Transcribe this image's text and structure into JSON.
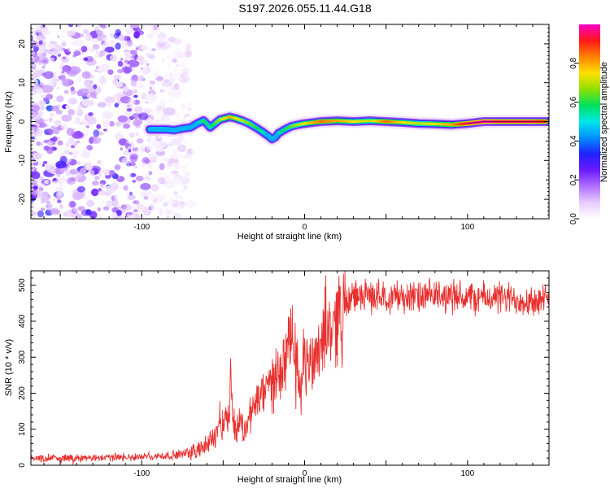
{
  "title": "S197.2026.055.11.44.G18",
  "colors": {
    "snr_line": "#e8302e",
    "ridge_core": "#ff2020",
    "background": "#ffffff",
    "colormap": [
      "#ffffff",
      "#e6ccff",
      "#b070ff",
      "#6a1bff",
      "#2020ff",
      "#0090ff",
      "#00e8e8",
      "#00e060",
      "#8ee000",
      "#ffe000",
      "#ff8000",
      "#ff1818",
      "#ff00c8"
    ]
  },
  "chart_data": [
    {
      "id": "spectrogram",
      "type": "heatmap",
      "xlabel": "Height of straight line (km)",
      "ylabel": "Frequency (Hz)",
      "xlim": [
        -168,
        150
      ],
      "ylim": [
        -25,
        25
      ],
      "xticks": [
        -100,
        0,
        100
      ],
      "yticks": [
        -20,
        -10,
        0,
        10,
        20
      ],
      "noise_region_x": [
        -168,
        -70
      ],
      "ridge": {
        "x": [
          -95,
          -90,
          -85,
          -80,
          -75,
          -70,
          -66,
          -62,
          -58,
          -52,
          -46,
          -42,
          -38,
          -34,
          -30,
          -26,
          -22,
          -20,
          -18,
          -16,
          -12,
          -8,
          -4,
          0,
          10,
          20,
          30,
          40,
          50,
          60,
          70,
          80,
          90,
          100,
          110,
          120,
          130,
          140,
          148
        ],
        "freq": [
          -2,
          -2,
          -2,
          -2.2,
          -1.8,
          -1.5,
          -0.5,
          0.3,
          -1.5,
          0.5,
          1.2,
          0.8,
          0.2,
          -0.5,
          -1.5,
          -2.6,
          -3.8,
          -4.5,
          -4,
          -3,
          -2,
          -1.2,
          -0.8,
          -0.5,
          0,
          0.2,
          0,
          0.2,
          0,
          -0.2,
          -0.5,
          -0.6,
          -0.8,
          -0.5,
          0,
          0,
          0,
          0,
          0
        ],
        "amplitude": [
          0.3,
          0.3,
          0.35,
          0.35,
          0.4,
          0.45,
          0.5,
          0.6,
          0.55,
          0.7,
          0.8,
          0.75,
          0.7,
          0.65,
          0.6,
          0.55,
          0.5,
          0.5,
          0.5,
          0.55,
          0.6,
          0.65,
          0.7,
          0.75,
          0.85,
          0.8,
          0.75,
          0.7,
          0.85,
          0.75,
          0.7,
          0.75,
          0.8,
          0.95,
          1,
          0.95,
          0.95,
          0.95,
          0.9
        ]
      }
    },
    {
      "id": "snr",
      "type": "line",
      "xlabel": "Height of straight line (km)",
      "ylabel": "SNR (10 * v/v)",
      "xlim": [
        -168,
        150
      ],
      "ylim": [
        0,
        540
      ],
      "xticks": [
        -100,
        0,
        100
      ],
      "yticks": [
        0,
        100,
        200,
        300,
        400,
        500
      ],
      "series": [
        {
          "name": "SNR",
          "x": [
            -168,
            -150,
            -130,
            -110,
            -90,
            -80,
            -70,
            -65,
            -60,
            -57,
            -55,
            -52,
            -50,
            -48,
            -46,
            -45.5,
            -45,
            -44,
            -42,
            -40,
            -37,
            -35,
            -30,
            -25,
            -20,
            -15,
            -12,
            -10,
            -8,
            -5,
            -3,
            0,
            5,
            10,
            15,
            20,
            25,
            30,
            35,
            40,
            50,
            60,
            70,
            80,
            90,
            100,
            110,
            120,
            130,
            140,
            150
          ],
          "values": [
            20,
            20,
            20,
            22,
            25,
            28,
            35,
            45,
            55,
            70,
            85,
            130,
            110,
            150,
            120,
            360,
            170,
            140,
            90,
            130,
            90,
            130,
            170,
            200,
            230,
            270,
            300,
            310,
            350,
            300,
            180,
            280,
            290,
            350,
            380,
            410,
            440,
            470,
            470,
            470,
            470,
            470,
            465,
            470,
            470,
            465,
            465,
            465,
            460,
            460,
            455
          ]
        }
      ]
    },
    {
      "id": "colorbar",
      "type": "heatmap",
      "label": "Normalized spectral amplitude",
      "range": [
        0,
        1
      ],
      "ticks": [
        0.0,
        0.2,
        0.4,
        0.6,
        0.8
      ]
    }
  ]
}
